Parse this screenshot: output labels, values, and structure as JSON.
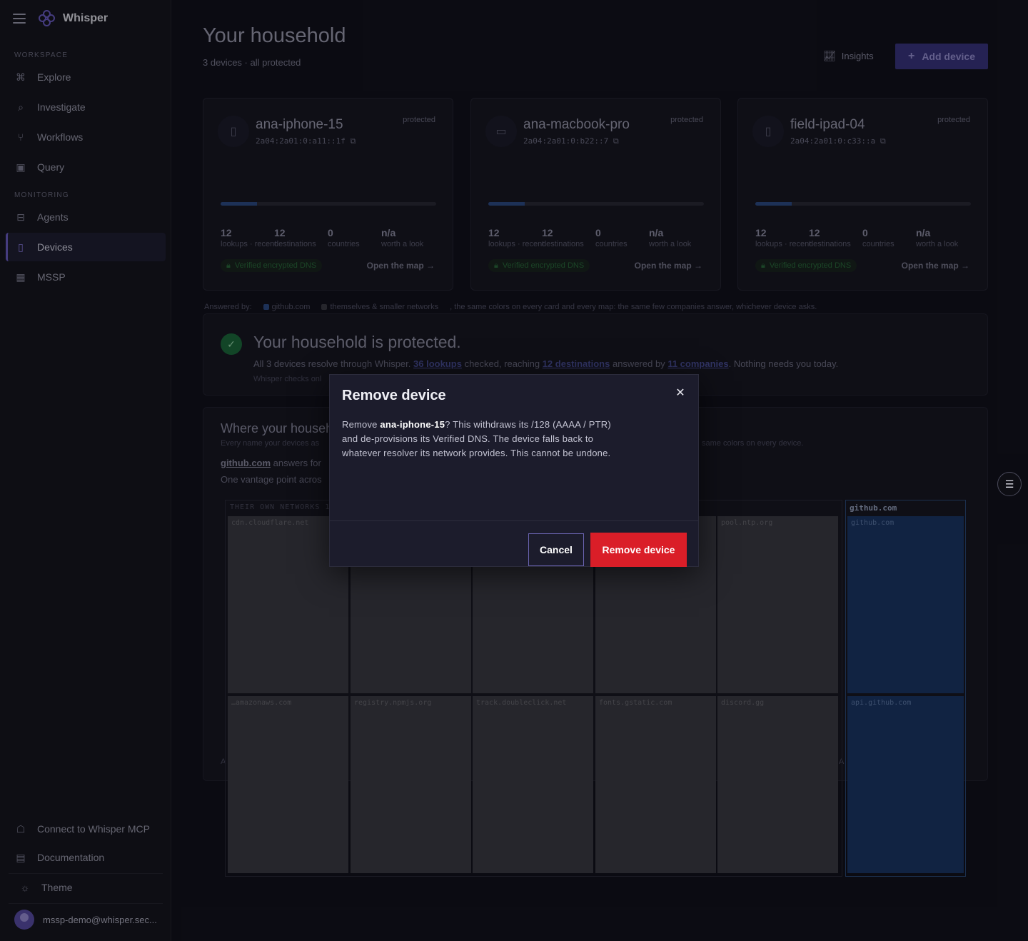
{
  "app": {
    "name": "Whisper"
  },
  "sidebar": {
    "sections": [
      {
        "label": "WORKSPACE"
      },
      {
        "label": "MONITORING"
      }
    ],
    "items": [
      {
        "label": "Explore",
        "icon": "explore-icon"
      },
      {
        "label": "Investigate",
        "icon": "investigate-icon"
      },
      {
        "label": "Workflows",
        "icon": "workflows-icon"
      },
      {
        "label": "Query",
        "icon": "query-icon"
      },
      {
        "label": "Agents",
        "icon": "agents-icon"
      },
      {
        "label": "Devices",
        "icon": "devices-icon",
        "active": true
      },
      {
        "label": "MSSP",
        "icon": "mssp-icon"
      }
    ],
    "footer": {
      "mcp": "Connect to Whisper MCP",
      "docs": "Documentation",
      "theme": "Theme",
      "user": "mssp-demo@whisper.sec..."
    }
  },
  "header": {
    "title": "Your household",
    "subtitle": "3 devices · all protected",
    "insights_label": "Insights",
    "add_device_label": "Add device"
  },
  "devices": [
    {
      "name": "ana-iphone-15",
      "address": "2a04:2a01:0:a11::1f",
      "status": "protected",
      "icon": "phone-icon",
      "lookups": "12",
      "lookups_label": "lookups · recent",
      "destinations": "12",
      "destinations_label": "destinations",
      "countries": "0",
      "countries_label": "countries",
      "worth": "n/a",
      "worth_label": "worth a look",
      "badge": "Verified encrypted DNS",
      "open_map": "Open the map"
    },
    {
      "name": "ana-macbook-pro",
      "address": "2a04:2a01:0:b22::7",
      "status": "protected",
      "icon": "laptop-icon",
      "lookups": "12",
      "lookups_label": "lookups · recent",
      "destinations": "12",
      "destinations_label": "destinations",
      "countries": "0",
      "countries_label": "countries",
      "worth": "n/a",
      "worth_label": "worth a look",
      "badge": "Verified encrypted DNS",
      "open_map": "Open the map"
    },
    {
      "name": "field-ipad-04",
      "address": "2a04:2a01:0:c33::a",
      "status": "protected",
      "icon": "tablet-icon",
      "lookups": "12",
      "lookups_label": "lookups · recent",
      "destinations": "12",
      "destinations_label": "destinations",
      "countries": "0",
      "countries_label": "countries",
      "worth": "n/a",
      "worth_label": "worth a look",
      "badge": "Verified encrypted DNS",
      "open_map": "Open the map"
    }
  ],
  "legend": {
    "prefix": "Answered by:",
    "entries": [
      {
        "label": "github.com",
        "color": "#2d4c86"
      },
      {
        "label": "themselves & smaller networks",
        "color": "#3b3b44"
      }
    ],
    "note": ", the same colors on every card and every map: the same few companies answer, whichever device asks."
  },
  "protection": {
    "title": "Your household is protected.",
    "text_1": "All 3 devices resolve through Whisper.",
    "lookups_link": "36 lookups",
    "text_2": "checked, reaching",
    "destinations_link": "12 destinations",
    "text_3": "answered by",
    "companies_link": "11 companies",
    "text_4": ". Nothing needs you today.",
    "note": "Whisper checks onl"
  },
  "where": {
    "title": "Where your househ",
    "sub_left": "Every name your devices as",
    "sub_right": "same colors on every device.",
    "gh_name": "github.com",
    "gh_rest": "answers for",
    "vantage": "One vantage point acros",
    "a_left": "A",
    "a_right": "A"
  },
  "treemap": {
    "header": "THEIR OWN NETWORKS 10",
    "tiles": [
      "cdn.cloudflare.net",
      "",
      "",
      "",
      "pool.ntp.org",
      "…amazonaws.com",
      "registry.npmjs.org",
      "track.doubleclick.net",
      "fonts.gstatic.com",
      "discord.gg"
    ],
    "github_header": "github.com",
    "github_tiles": [
      "github.com",
      "api.github.com"
    ],
    "colors": {
      "other": "#3b3b44",
      "github": "#1b3766"
    }
  },
  "modal": {
    "title": "Remove device",
    "body_prefix": "Remove ",
    "device_name": "ana-iphone-15",
    "body_suffix": "? This withdraws its /128 (AAAA / PTR) and de-provisions its Verified DNS. The device falls back to whatever resolver its network provides. This cannot be undone.",
    "cancel_label": "Cancel",
    "confirm_label": "Remove device",
    "confirm_color": "#da1e28"
  }
}
